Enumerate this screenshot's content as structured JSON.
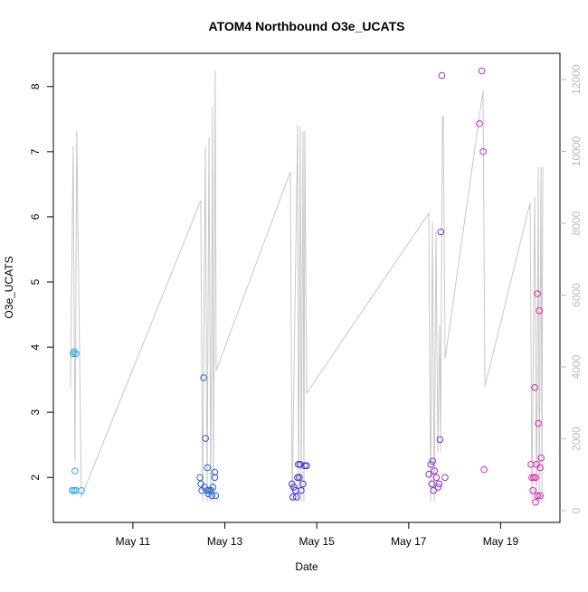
{
  "chart_data": {
    "type": "scatter",
    "title": "ATOM4 Northbound O3e_UCATS",
    "x_label": "Date",
    "y_label": "O3e_UCATS",
    "xlim": [
      9.27,
      20.29
    ],
    "ylim": [
      1.31,
      8.51
    ],
    "y2lim": [
      -327,
      12730
    ],
    "xticks": [
      {
        "value": 11,
        "label": "May 11"
      },
      {
        "value": 13,
        "label": "May 13"
      },
      {
        "value": 15,
        "label": "May 15"
      },
      {
        "value": 17,
        "label": "May 17"
      },
      {
        "value": 19,
        "label": "May 19"
      }
    ],
    "yticks": [
      2,
      3,
      4,
      5,
      6,
      7,
      8
    ],
    "y2ticks": [
      0,
      2000,
      4000,
      6000,
      8000,
      10000,
      12000
    ],
    "y2_color": "#bbbbbb",
    "series": [
      {
        "type": "line",
        "axis": "y2",
        "color": "#c8c8c8",
        "x": [
          9.642,
          9.701,
          9.74,
          9.78,
          9.878,
          12.476,
          12.516,
          12.575,
          12.614,
          12.654,
          12.693,
          12.732,
          12.752,
          12.791,
          12.811,
          14.425,
          14.465,
          14.583,
          14.602,
          14.642,
          14.661,
          14.701,
          14.72,
          14.74,
          14.78,
          17.437,
          17.476,
          17.516,
          17.555,
          17.594,
          17.634,
          17.673,
          17.693,
          17.732,
          17.752,
          17.791,
          18.618,
          18.657,
          19.642,
          19.681,
          19.74,
          19.78,
          19.819,
          19.839,
          19.878,
          19.898,
          19.917
        ],
        "values": [
          3400,
          10140,
          1380,
          10570,
          380,
          8630,
          250,
          10140,
          250,
          10390,
          250,
          11250,
          250,
          12250,
          3900,
          9430,
          250,
          10740,
          250,
          10690,
          250,
          10570,
          250,
          10570,
          3270,
          8280,
          250,
          8050,
          250,
          7800,
          1640,
          5160,
          1640,
          10940,
          10990,
          4230,
          11700,
          3450,
          8580,
          250,
          8730,
          250,
          9560,
          250,
          9560,
          250,
          9560
        ]
      },
      {
        "type": "scatter",
        "color": "#2aa8e0",
        "x": [
          9.7,
          9.72,
          9.76,
          9.74,
          9.68,
          9.72,
          9.76,
          9.88
        ],
        "values": [
          3.9,
          3.93,
          3.9,
          2.1,
          1.8,
          1.8,
          1.8,
          1.8
        ]
      },
      {
        "type": "scatter",
        "color": "#2860e0",
        "x": [
          12.54,
          12.58,
          12.62,
          12.46,
          12.78,
          12.78,
          12.48,
          12.56,
          12.5,
          12.62,
          12.7,
          12.64,
          12.72,
          12.8,
          12.66,
          12.74
        ],
        "values": [
          3.53,
          2.6,
          2.15,
          2.0,
          2.08,
          2.0,
          1.9,
          1.85,
          1.8,
          1.8,
          1.8,
          1.75,
          1.72,
          1.72,
          1.8,
          1.85
        ]
      },
      {
        "type": "scatter",
        "color": "#3a30e0",
        "x": [
          14.6,
          14.64,
          14.78,
          14.58,
          14.62,
          14.46,
          14.5,
          14.54,
          14.66,
          14.48,
          14.56,
          14.7,
          14.74
        ],
        "values": [
          2.2,
          2.2,
          2.18,
          2.0,
          2.0,
          1.9,
          1.85,
          1.8,
          1.8,
          1.7,
          1.7,
          1.9,
          2.18
        ]
      },
      {
        "type": "scatter",
        "color": "#8a30e0",
        "x": [
          17.48,
          17.52,
          17.56,
          17.44,
          17.6,
          17.5,
          17.64,
          17.54,
          17.66,
          17.68,
          17.7,
          17.72,
          17.79
        ],
        "values": [
          2.2,
          2.25,
          2.1,
          2.05,
          2.0,
          1.9,
          1.85,
          1.8,
          1.9,
          2.58,
          5.77,
          8.17,
          2.0
        ]
      },
      {
        "type": "scatter",
        "color": "#cc28dc",
        "x": [
          18.54,
          18.59,
          18.62,
          18.64
        ],
        "values": [
          7.43,
          8.24,
          7.0,
          2.12
        ]
      },
      {
        "type": "scatter",
        "color": "#e020b0",
        "x": [
          19.66,
          19.7,
          19.72,
          19.76,
          19.74,
          19.8,
          19.84,
          19.82,
          19.78,
          19.86,
          19.8,
          19.86,
          19.76,
          19.88,
          19.68
        ],
        "values": [
          2.2,
          1.8,
          2.0,
          2.0,
          3.38,
          4.82,
          4.56,
          2.83,
          2.2,
          2.15,
          1.72,
          1.72,
          1.62,
          2.3,
          2.0
        ]
      }
    ]
  }
}
